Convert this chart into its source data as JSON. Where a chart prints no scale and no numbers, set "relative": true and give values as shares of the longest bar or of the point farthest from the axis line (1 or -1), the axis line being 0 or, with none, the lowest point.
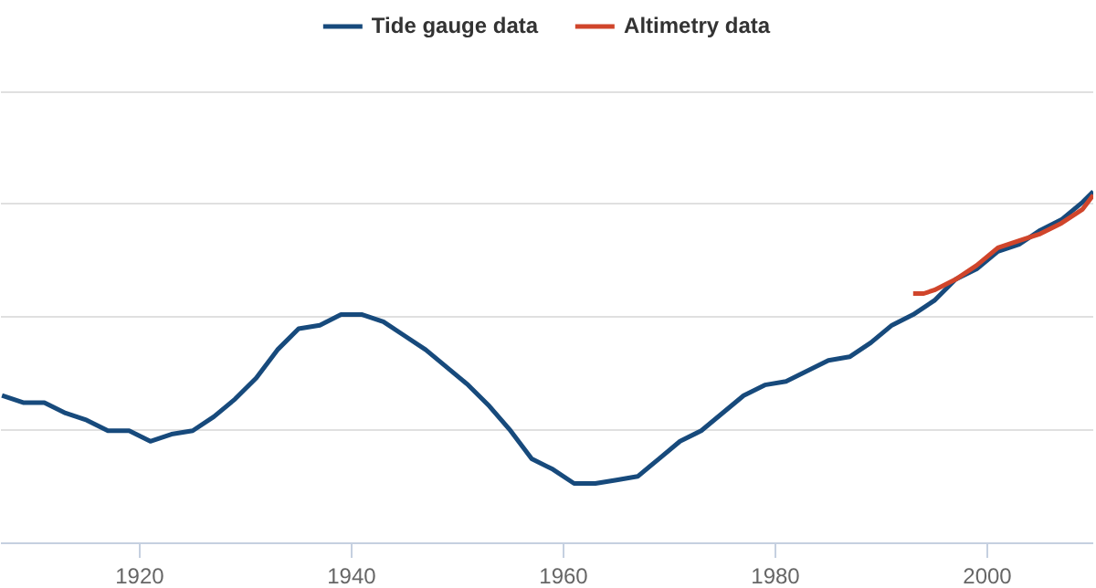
{
  "chart_data": {
    "type": "line",
    "relative": true,
    "xlim": [
      1906.9,
      2010
    ],
    "xticks": [
      1920,
      1940,
      1960,
      1980,
      2000
    ],
    "grid": "y",
    "legend": "top",
    "line_style": "solid",
    "marker": "none",
    "series": [
      {
        "name": "Tide gauge data",
        "color": "#174a7c",
        "x": [
          1907,
          1909,
          1911,
          1913,
          1915,
          1917,
          1919,
          1921,
          1923,
          1925,
          1927,
          1929,
          1931,
          1933,
          1935,
          1937,
          1939,
          1941,
          1943,
          1945,
          1947,
          1949,
          1951,
          1953,
          1955,
          1957,
          1959,
          1961,
          1963,
          1965,
          1967,
          1969,
          1971,
          1973,
          1975,
          1977,
          1979,
          1981,
          1983,
          1985,
          1987,
          1989,
          1991,
          1993,
          1995,
          1997,
          1999,
          2001,
          2003,
          2005,
          2007,
          2009,
          2010
        ],
        "values": [
          0.42,
          0.4,
          0.4,
          0.37,
          0.35,
          0.32,
          0.32,
          0.29,
          0.31,
          0.32,
          0.36,
          0.41,
          0.47,
          0.55,
          0.61,
          0.62,
          0.65,
          0.65,
          0.63,
          0.59,
          0.55,
          0.5,
          0.45,
          0.39,
          0.32,
          0.24,
          0.21,
          0.17,
          0.17,
          0.18,
          0.19,
          0.24,
          0.29,
          0.32,
          0.37,
          0.42,
          0.45,
          0.46,
          0.49,
          0.52,
          0.53,
          0.57,
          0.62,
          0.65,
          0.69,
          0.75,
          0.78,
          0.83,
          0.85,
          0.89,
          0.92,
          0.97,
          1.0
        ]
      },
      {
        "name": "Altimetry data",
        "color": "#d0452b",
        "x": [
          1993,
          1994,
          1995,
          1997,
          1999,
          2001,
          2003,
          2005,
          2007,
          2009,
          2010
        ],
        "values": [
          0.71,
          0.71,
          0.72,
          0.75,
          0.79,
          0.84,
          0.86,
          0.88,
          0.91,
          0.95,
          0.99
        ]
      }
    ]
  }
}
